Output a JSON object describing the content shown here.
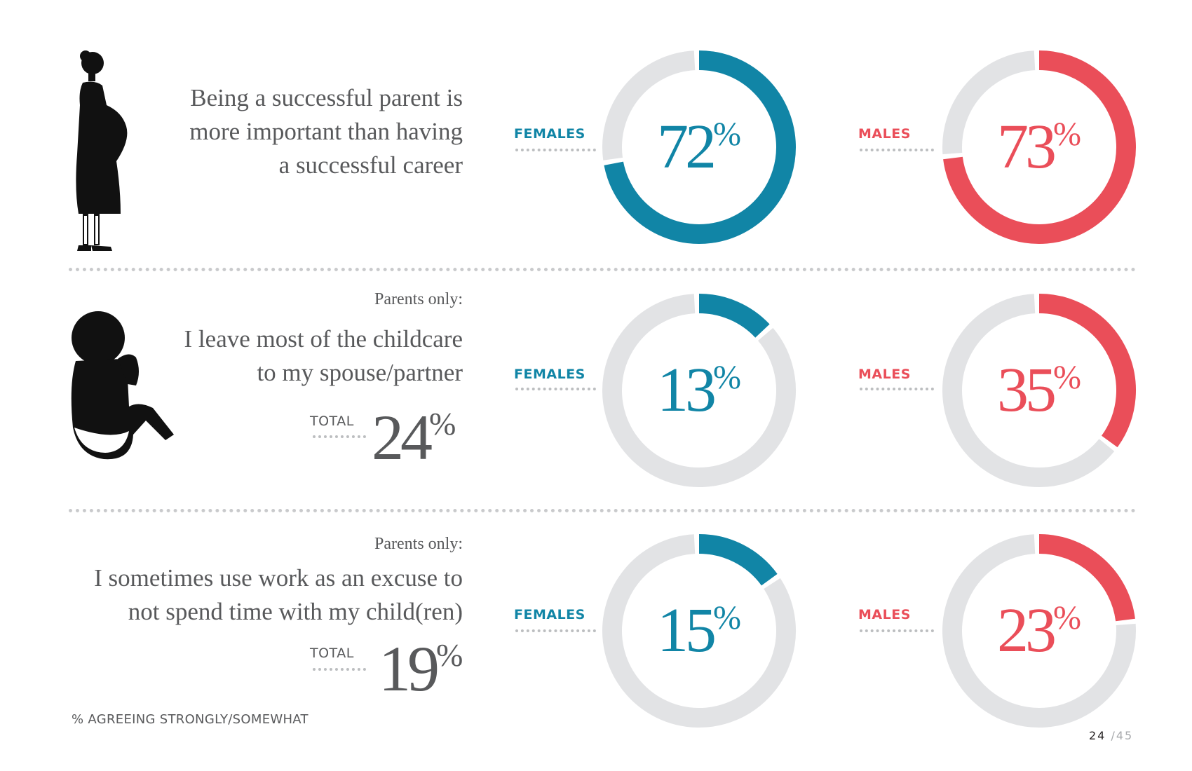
{
  "colors": {
    "female": "#1185a6",
    "male": "#ea4e59",
    "track": "#e2e3e5",
    "text": "#58595b"
  },
  "rows": [
    {
      "icon": "pregnant-woman-icon",
      "note": "",
      "lines": [
        "Being a successful parent is",
        "more important than having",
        "a successful career"
      ],
      "total_label": "",
      "total_value": "",
      "total_pct": ""
    },
    {
      "icon": "baby-icon",
      "note": "Parents only:",
      "lines": [
        "I leave most of the childcare",
        "to my spouse/partner"
      ],
      "total_label": "TOTAL",
      "total_value": "24",
      "total_pct": "%"
    },
    {
      "icon": "parent-child-icon",
      "note": "Parents only:",
      "lines": [
        "I sometimes use work as an excuse to",
        "not spend time with my child(ren)"
      ],
      "total_label": "TOTAL",
      "total_value": "19",
      "total_pct": "%"
    }
  ],
  "chart_data": {
    "type": "donut",
    "title": "",
    "series": [
      {
        "name": "FEMALES",
        "values": [
          72,
          13,
          15
        ]
      },
      {
        "name": "MALES",
        "values": [
          73,
          35,
          23
        ]
      }
    ],
    "categories": [
      "Being a successful parent is more important than having a successful career",
      "I leave most of the childcare to my spouse/partner",
      "I sometimes use work as an excuse to not spend time with my child(ren)"
    ],
    "unit": "%",
    "max": 100
  },
  "donut_labels": {
    "female": [
      "FEMALES",
      "FEMALES",
      "FEMALES"
    ],
    "male": [
      "MALES",
      "MALES",
      "MALES"
    ],
    "female_values": [
      "72",
      "13",
      "15"
    ],
    "male_values": [
      "73",
      "35",
      "23"
    ],
    "pct": "%"
  },
  "footer": "% AGREEING STRONGLY/SOMEWHAT",
  "pager": {
    "current": "24",
    "total": "/45"
  }
}
